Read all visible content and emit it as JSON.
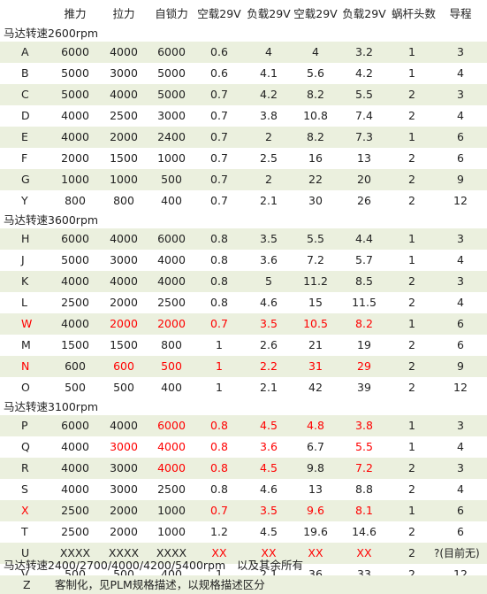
{
  "header": [
    "推力",
    "拉力",
    "自锁力",
    "空载29V",
    "负载29V",
    "空载29V",
    "负载29V",
    "蜗杆头数",
    "导程"
  ],
  "sections": [
    {
      "title": "马达转速2600rpm",
      "rows": [
        {
          "id": "A",
          "cells": [
            "6000",
            "4000",
            "6000",
            "0.6",
            "4",
            "4",
            "3.2",
            "1",
            "3"
          ]
        },
        {
          "id": "B",
          "cells": [
            "5000",
            "3000",
            "5000",
            "0.6",
            "4.1",
            "5.6",
            "4.2",
            "1",
            "4"
          ]
        },
        {
          "id": "C",
          "cells": [
            "5000",
            "4000",
            "5000",
            "0.7",
            "4.2",
            "8.2",
            "5.5",
            "2",
            "3"
          ]
        },
        {
          "id": "D",
          "cells": [
            "4000",
            "2500",
            "3000",
            "0.7",
            "3.8",
            "10.8",
            "7.4",
            "2",
            "4"
          ]
        },
        {
          "id": "E",
          "cells": [
            "4000",
            "2000",
            "2400",
            "0.7",
            "2",
            "8.2",
            "7.3",
            "1",
            "6"
          ]
        },
        {
          "id": "F",
          "cells": [
            "2000",
            "1500",
            "1000",
            "0.7",
            "2.5",
            "16",
            "13",
            "2",
            "6"
          ]
        },
        {
          "id": "G",
          "cells": [
            "1000",
            "1000",
            "500",
            "0.7",
            "2",
            "22",
            "20",
            "2",
            "9"
          ]
        },
        {
          "id": "Y",
          "cells": [
            "800",
            "800",
            "400",
            "0.7",
            "2.1",
            "30",
            "26",
            "2",
            "12"
          ]
        }
      ]
    },
    {
      "title": "马达转速3600rpm",
      "rows": [
        {
          "id": "H",
          "cells": [
            "6000",
            "4000",
            "6000",
            "0.8",
            "3.5",
            "5.5",
            "4.4",
            "1",
            "3"
          ]
        },
        {
          "id": "J",
          "cells": [
            "5000",
            "3000",
            "4000",
            "0.8",
            "3.6",
            "7.2",
            "5.7",
            "1",
            "4"
          ]
        },
        {
          "id": "K",
          "cells": [
            "4000",
            "4000",
            "4000",
            "0.8",
            "5",
            "11.2",
            "8.5",
            "2",
            "3"
          ]
        },
        {
          "id": "L",
          "cells": [
            "2500",
            "2000",
            "2500",
            "0.8",
            "4.6",
            "15",
            "11.5",
            "2",
            "4"
          ]
        },
        {
          "id": "W",
          "cells": [
            "4000",
            "2000",
            "2000",
            "0.7",
            "3.5",
            "10.5",
            "8.2",
            "1",
            "6"
          ]
        },
        {
          "id": "M",
          "cells": [
            "1500",
            "1500",
            "800",
            "1",
            "2.6",
            "21",
            "19",
            "2",
            "6"
          ]
        },
        {
          "id": "N",
          "cells": [
            "600",
            "600",
            "500",
            "1",
            "2.2",
            "31",
            "29",
            "2",
            "9"
          ]
        },
        {
          "id": "O",
          "cells": [
            "500",
            "500",
            "400",
            "1",
            "2.1",
            "42",
            "39",
            "2",
            "12"
          ]
        }
      ]
    },
    {
      "title": "马达转速3100rpm",
      "rows": [
        {
          "id": "P",
          "cells": [
            "6000",
            "4000",
            "6000",
            "0.8",
            "4.5",
            "4.8",
            "3.8",
            "1",
            "3"
          ]
        },
        {
          "id": "Q",
          "cells": [
            "4000",
            "3000",
            "4000",
            "0.8",
            "3.6",
            "6.7",
            "5.5",
            "1",
            "4"
          ]
        },
        {
          "id": "R",
          "cells": [
            "4000",
            "3000",
            "4000",
            "0.8",
            "4.5",
            "9.8",
            "7.2",
            "2",
            "3"
          ]
        },
        {
          "id": "S",
          "cells": [
            "4000",
            "3000",
            "2500",
            "0.8",
            "4.6",
            "13",
            "8.8",
            "2",
            "4"
          ]
        },
        {
          "id": "X",
          "cells": [
            "2500",
            "2000",
            "1000",
            "0.7",
            "3.5",
            "9.6",
            "8.1",
            "1",
            "6"
          ]
        },
        {
          "id": "T",
          "cells": [
            "2500",
            "2000",
            "1000",
            "1.2",
            "4.5",
            "19.6",
            "14.6",
            "2",
            "6"
          ]
        },
        {
          "id": "U",
          "cells": [
            "XXXX",
            "XXXX",
            "XXXX",
            "XX",
            "XX",
            "XX",
            "XX",
            "2",
            "?(目前无)"
          ]
        },
        {
          "id": "V",
          "cells": [
            "500",
            "500",
            "400",
            "1",
            "2.1",
            "36",
            "33",
            "2",
            "12"
          ]
        }
      ]
    }
  ],
  "footer": {
    "speeds": "马达转速2400/2700/4000/4200/5400rpm",
    "others": "以及其余所有",
    "z_id": "Z",
    "z_text": "客制化，见PLM规格描述，以规格描述区分"
  },
  "colors": {
    "band": "#ebf0de",
    "highlight": "#ff0000"
  }
}
